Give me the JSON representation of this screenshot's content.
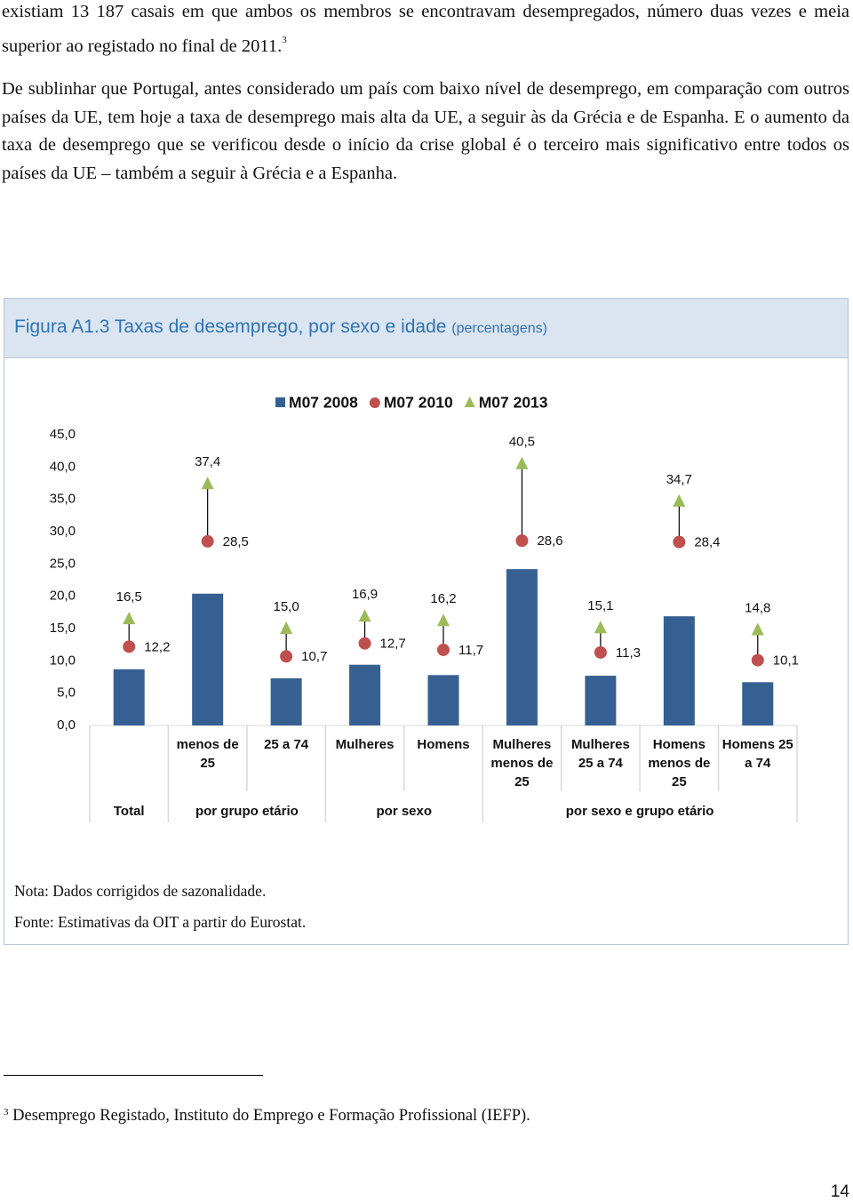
{
  "paragraphs": [
    {
      "text": "existiam 13 187 casais em que ambos os membros se encontravam desempregados, número duas vezes e meia superior ao registado no final de 2011.",
      "footnote_ref": "3"
    },
    {
      "text": "De sublinhar que Portugal, antes considerado um país com baixo nível de desemprego, em comparação com outros países da UE, tem hoje a taxa de desemprego mais alta da UE, a seguir às da Grécia e de Espanha. E o aumento da taxa de desemprego que se verificou desde o início da crise global é o terceiro mais significativo entre todos os países da UE – também a seguir à Grécia e a Espanha."
    }
  ],
  "figure": {
    "label": "Figura A1.3",
    "title": "Taxas de desemprego, por sexo e idade",
    "unit": "(percentagens)",
    "notes": [
      "Nota: Dados corrigidos de sazonalidade.",
      "Fonte: Estimativas da OIT a partir do Eurostat."
    ]
  },
  "chart_data": {
    "type": "bar",
    "categories": [
      null,
      "menos de 25",
      "25 a 74",
      "Mulheres",
      "Homens",
      "Mulheres menos de 25",
      "Mulheres 25 a 74",
      "Homens menos de 25",
      "Homens 25 a 74"
    ],
    "groups": [
      "Total",
      "por grupo etário",
      "por sexo",
      "por sexo e grupo etário"
    ],
    "ylim": [
      0,
      45
    ],
    "yticks": [
      {
        "value": 0,
        "label": "0,0"
      },
      {
        "value": 5,
        "label": "5,0"
      },
      {
        "value": 10,
        "label": "10,0"
      },
      {
        "value": 15,
        "label": "15,0"
      },
      {
        "value": 20,
        "label": "20,0"
      },
      {
        "value": 25,
        "label": "25,0"
      },
      {
        "value": 30,
        "label": "30,0"
      },
      {
        "value": 35,
        "label": "35,0"
      },
      {
        "value": 40,
        "label": "40,0"
      },
      {
        "value": 45,
        "label": "45,0"
      }
    ],
    "grid": false,
    "legend": "top",
    "series": [
      {
        "name": "M07 2008",
        "marker": "bar",
        "color": "#376092",
        "values": [
          8.7,
          20.4,
          7.3,
          9.4,
          7.8,
          24.2,
          7.7,
          16.9,
          6.7
        ]
      },
      {
        "name": "M07 2010",
        "marker": "circle",
        "color": "#c0504d",
        "values": [
          12.2,
          28.5,
          10.7,
          12.7,
          11.7,
          28.6,
          11.3,
          28.4,
          10.1
        ],
        "value_labels": [
          "12,2",
          "28,5",
          "10,7",
          "12,7",
          "11,7",
          "28,6",
          "11,3",
          "28,4",
          "10,1"
        ]
      },
      {
        "name": "M07 2013",
        "marker": "triangle",
        "color": "#9bbb59",
        "values": [
          16.5,
          37.4,
          15.0,
          16.9,
          16.2,
          40.5,
          15.1,
          34.7,
          14.8
        ],
        "value_labels": [
          "16,5",
          "37,4",
          "15,0",
          "16,9",
          "16,2",
          "40,5",
          "15,1",
          "34,7",
          "14,8"
        ]
      }
    ]
  },
  "footnote": {
    "marker": "3",
    "text": "Desemprego Registado, Instituto do Emprego e Formação Profissional (IEFP)."
  },
  "page_number": "14"
}
